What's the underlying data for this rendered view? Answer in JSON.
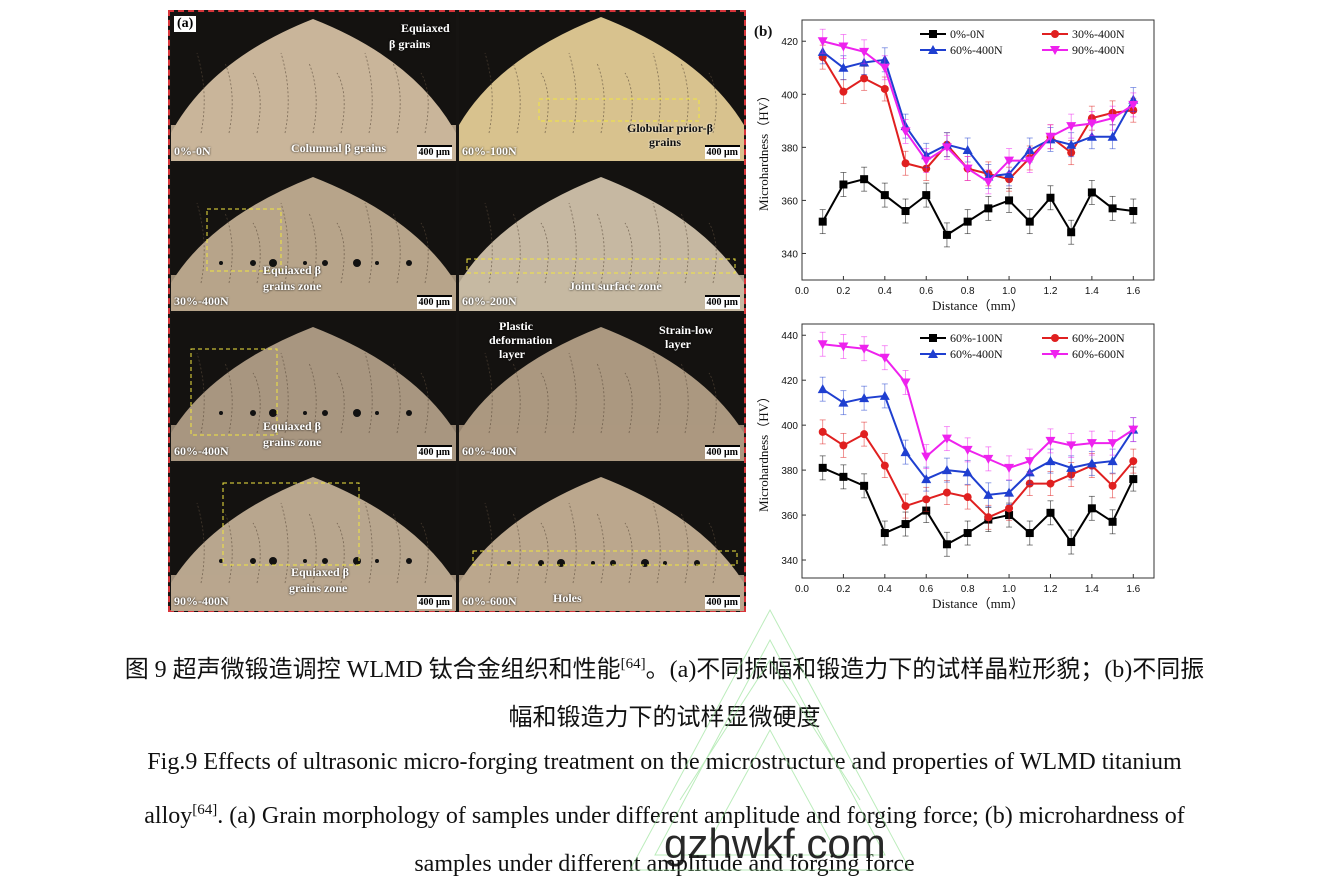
{
  "panel_a": {
    "letter": "(a)",
    "micrographs": [
      {
        "label": "0%-0N",
        "scale": "400 μm",
        "annotations": [
          "Equiaxed",
          "β grains",
          "Columnal β grains"
        ]
      },
      {
        "label": "60%-100N",
        "scale": "400 μm",
        "annotations": [
          "Globular prior-β",
          "grains"
        ]
      },
      {
        "label": "30%-400N",
        "scale": "400 μm",
        "annotations": [
          "Equiaxed β",
          "grains zone"
        ]
      },
      {
        "label": "60%-200N",
        "scale": "400 μm",
        "annotations": [
          "Joint surface zone"
        ]
      },
      {
        "label": "60%-400N",
        "scale": "400 μm",
        "annotations": [
          "Equiaxed β",
          "grains zone"
        ]
      },
      {
        "label": "60%-400N",
        "scale": "400 μm",
        "annotations": [
          "Plastic",
          "deformation",
          "layer",
          "Strain-low",
          "layer"
        ]
      },
      {
        "label": "90%-400N",
        "scale": "400 μm",
        "annotations": [
          "Equiaxed β",
          "grains zone"
        ]
      },
      {
        "label": "60%-600N",
        "scale": "400 μm",
        "annotations": [
          "Holes"
        ]
      }
    ]
  },
  "chart_data": [
    {
      "type": "line",
      "panel_letter": "(b)",
      "xlabel": "Distance（mm）",
      "ylabel": "Microhardness（HV）",
      "xlim": [
        0.0,
        1.7
      ],
      "ylim": [
        330,
        428
      ],
      "xticks": [
        "0.0",
        "0.2",
        "0.4",
        "0.6",
        "0.8",
        "1.0",
        "1.2",
        "1.4",
        "1.6"
      ],
      "yticks": [
        "340",
        "360",
        "380",
        "400",
        "420"
      ],
      "legend": "top-right",
      "x": [
        0.1,
        0.2,
        0.3,
        0.4,
        0.5,
        0.6,
        0.7,
        0.8,
        0.9,
        1.0,
        1.1,
        1.2,
        1.3,
        1.4,
        1.5,
        1.6
      ],
      "series": [
        {
          "name": "0%-0N",
          "color": "#000000",
          "marker": "square",
          "values": [
            352,
            366,
            368,
            362,
            356,
            362,
            347,
            352,
            357,
            360,
            352,
            361,
            348,
            363,
            357,
            356
          ]
        },
        {
          "name": "30%-400N",
          "color": "#e02020",
          "marker": "circle",
          "values": [
            414,
            401,
            406,
            402,
            374,
            372,
            381,
            372,
            370,
            368,
            376,
            384,
            378,
            391,
            393,
            394
          ]
        },
        {
          "name": "60%-400N",
          "color": "#1f3fd0",
          "marker": "triangle-up",
          "values": [
            416,
            410,
            412,
            413,
            388,
            377,
            381,
            379,
            369,
            370,
            379,
            383,
            381,
            384,
            384,
            398
          ]
        },
        {
          "name": "90%-400N",
          "color": "#ee22ee",
          "marker": "triangle-down",
          "values": [
            420,
            418,
            416,
            410,
            386,
            375,
            380,
            372,
            367,
            375,
            375,
            384,
            388,
            389,
            391,
            396
          ]
        }
      ]
    },
    {
      "type": "line",
      "xlabel": "Distance（mm）",
      "ylabel": "Microhardness（HV）",
      "xlim": [
        0.0,
        1.7
      ],
      "ylim": [
        332,
        445
      ],
      "xticks": [
        "0.0",
        "0.2",
        "0.4",
        "0.6",
        "0.8",
        "1.0",
        "1.2",
        "1.4",
        "1.6"
      ],
      "yticks": [
        "340",
        "360",
        "380",
        "400",
        "420",
        "440"
      ],
      "legend": "top-right",
      "x": [
        0.1,
        0.2,
        0.3,
        0.4,
        0.5,
        0.6,
        0.7,
        0.8,
        0.9,
        1.0,
        1.1,
        1.2,
        1.3,
        1.4,
        1.5,
        1.6
      ],
      "series": [
        {
          "name": "60%-100N",
          "color": "#000000",
          "marker": "square",
          "values": [
            381,
            377,
            373,
            352,
            356,
            362,
            347,
            352,
            358,
            360,
            352,
            361,
            348,
            363,
            357,
            376
          ]
        },
        {
          "name": "60%-200N",
          "color": "#e02020",
          "marker": "circle",
          "values": [
            397,
            391,
            396,
            382,
            364,
            367,
            370,
            368,
            359,
            363,
            374,
            374,
            378,
            382,
            373,
            384
          ]
        },
        {
          "name": "60%-400N",
          "color": "#1f3fd0",
          "marker": "triangle-up",
          "values": [
            416,
            410,
            412,
            413,
            388,
            376,
            380,
            379,
            369,
            370,
            379,
            384,
            381,
            383,
            384,
            398
          ]
        },
        {
          "name": "60%-600N",
          "color": "#ee22ee",
          "marker": "triangle-down",
          "values": [
            436,
            435,
            434,
            430,
            419,
            386,
            394,
            389,
            385,
            381,
            384,
            393,
            391,
            392,
            392,
            398
          ]
        }
      ]
    }
  ],
  "caption": {
    "cn_line1": "图 9  超声微锻造调控 WLMD 钛合金组织和性能",
    "cn_ref": "[64]",
    "cn_line1_rest": "。(a)不同振幅和锻造力下的试样晶粒形貌；(b)不同振",
    "cn_line2": "幅和锻造力下的试样显微硬度",
    "en_line1": "Fig.9 Effects of ultrasonic micro-forging treatment on the microstructure and properties of WLMD titanium",
    "en_line2a": "alloy",
    "en_ref": "[64]",
    "en_line2b": ". (a) Grain morphology of samples under different amplitude and forging force; (b) microhardness of",
    "en_line3": "samples under different amplitude and forging force"
  },
  "watermark": "gzhwkf.com"
}
